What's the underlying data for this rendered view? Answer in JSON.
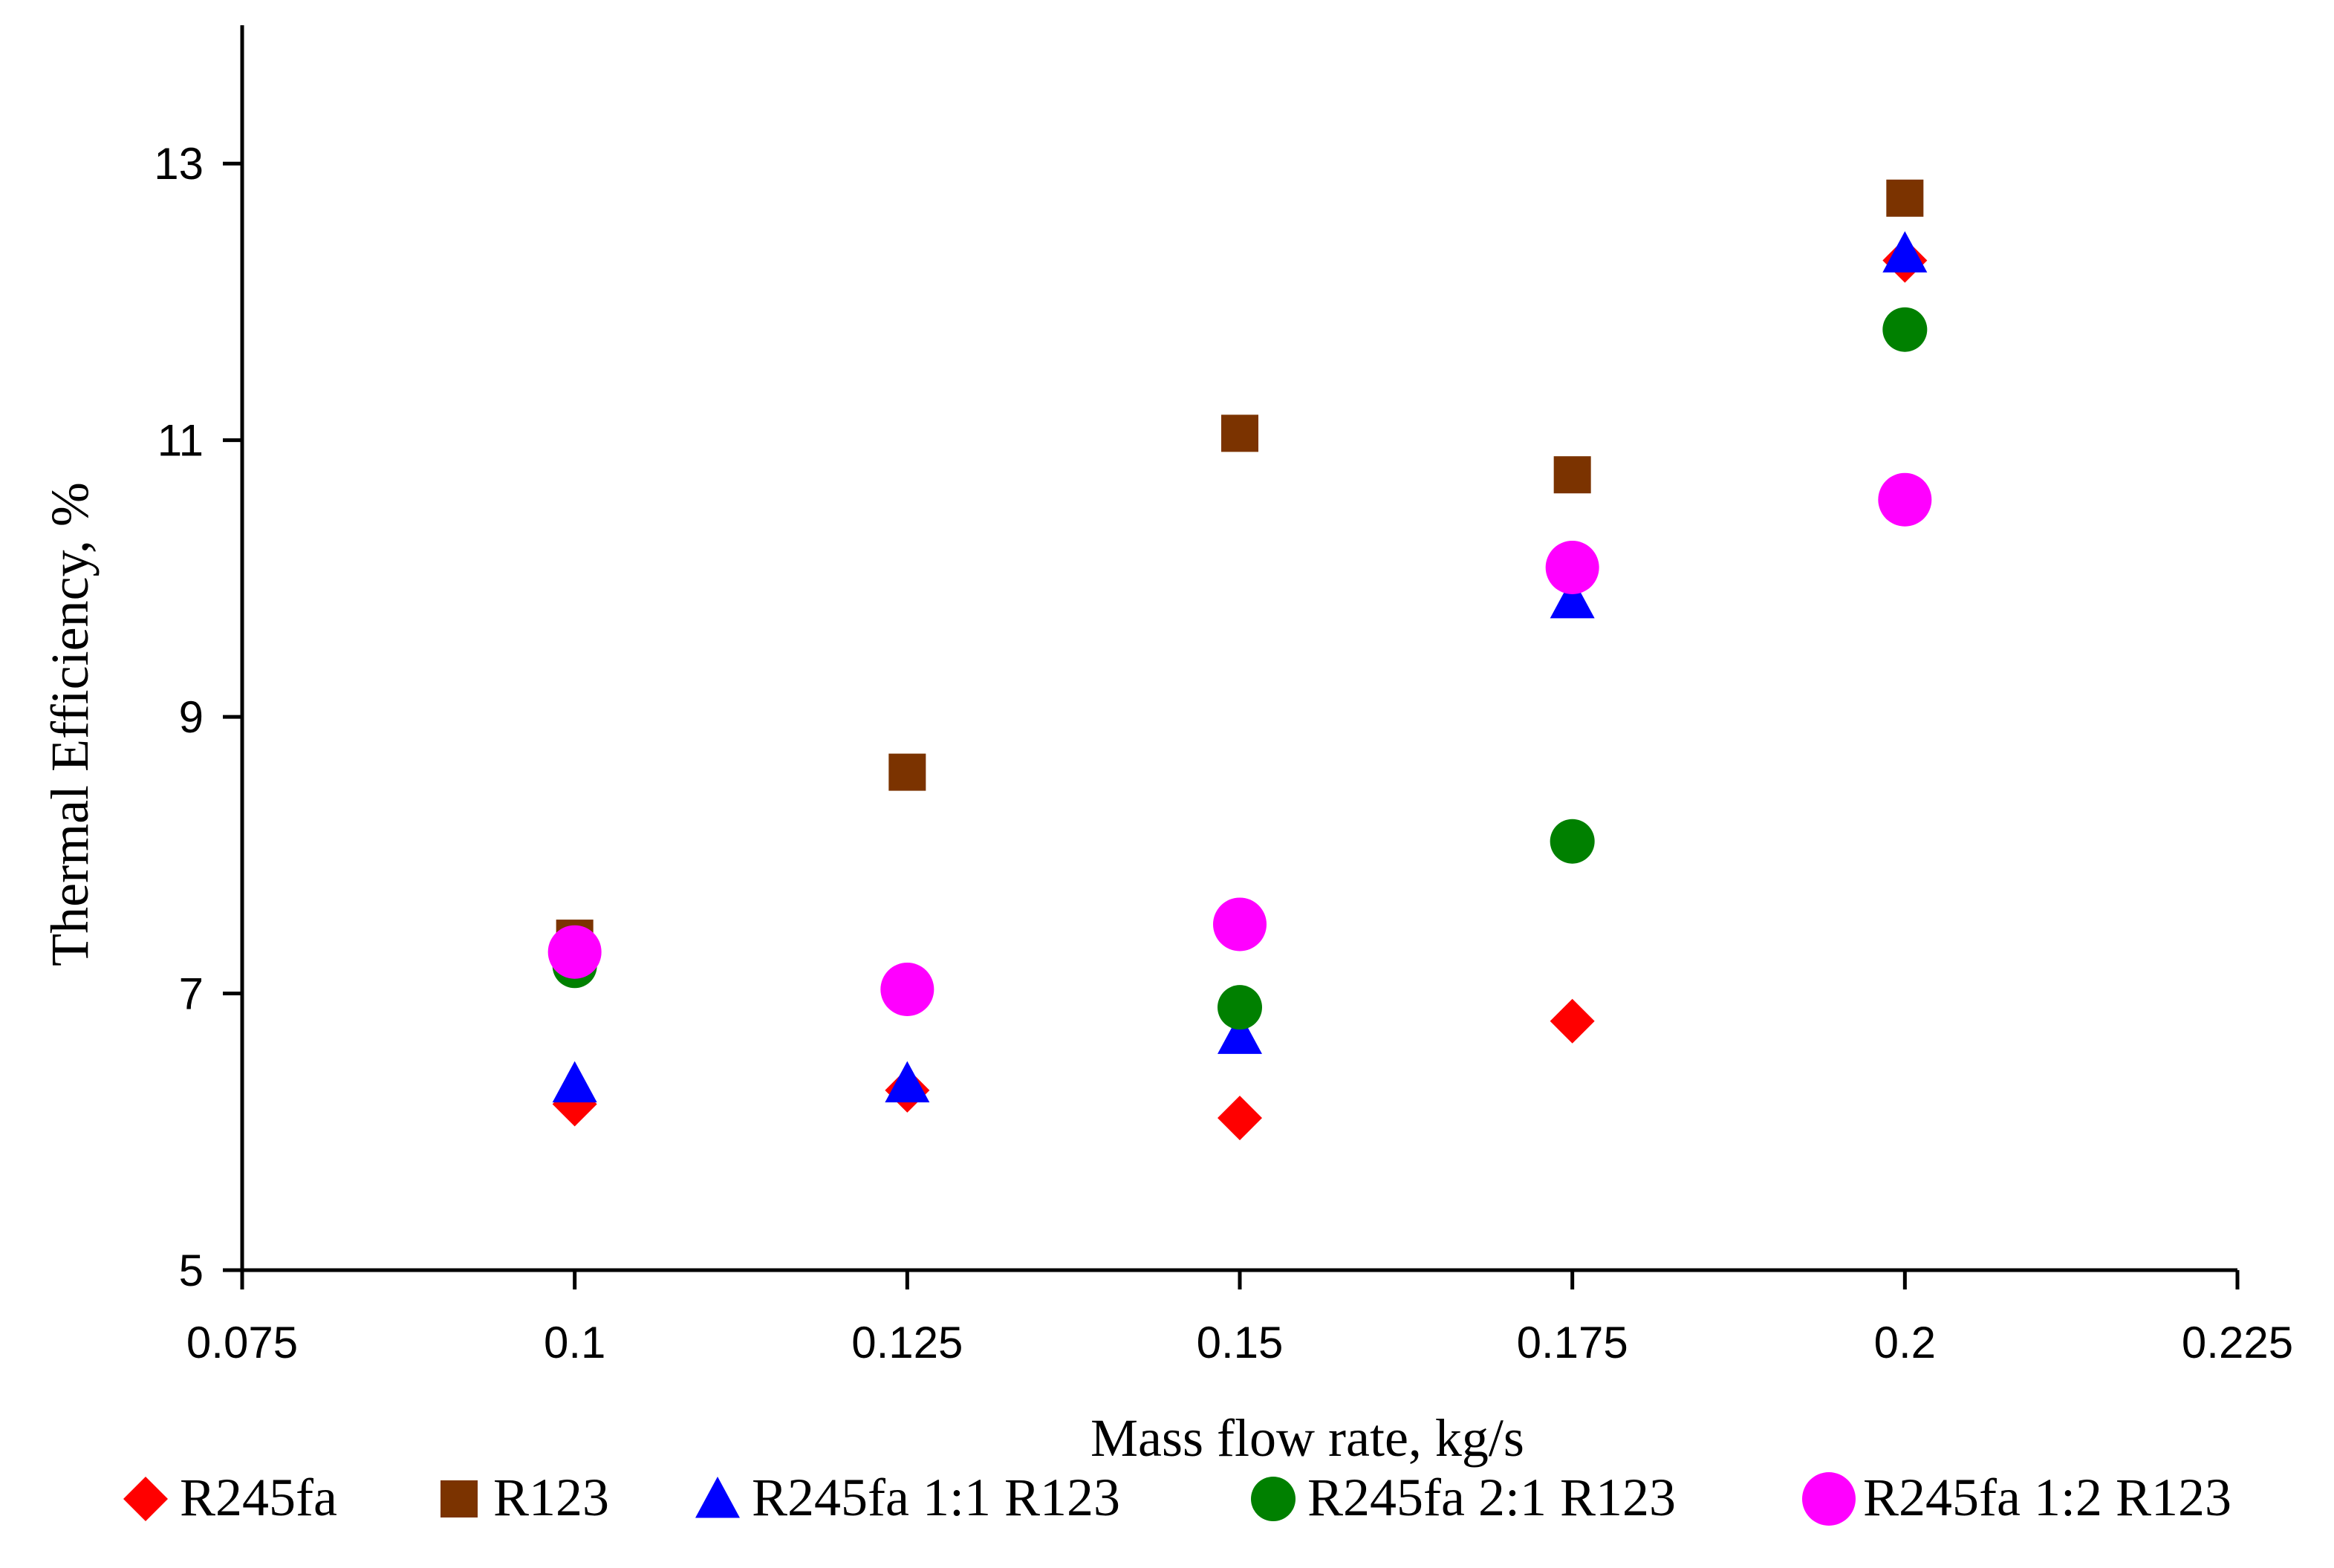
{
  "chart_data": {
    "type": "scatter",
    "xlabel": "Mass flow rate, kg/s",
    "ylabel": "Thermal Efficiency, %",
    "xlim": [
      0.075,
      0.225
    ],
    "ylim": [
      5,
      14
    ],
    "x_ticks": [
      0.075,
      0.1,
      0.125,
      0.15,
      0.175,
      0.2,
      0.225
    ],
    "x_tick_labels": [
      "0.075",
      "0.1",
      "0.125",
      "0.15",
      "0.175",
      "0.2",
      "0.225"
    ],
    "y_ticks": [
      5,
      7,
      9,
      11,
      13
    ],
    "y_tick_labels": [
      "5",
      "7",
      "9",
      "11",
      "13"
    ],
    "grid": false,
    "legend_position": "bottom",
    "series": [
      {
        "name": "R245fa",
        "marker": "diamond",
        "color": "#ff0000",
        "x": [
          0.1,
          0.125,
          0.15,
          0.175,
          0.2
        ],
        "y": [
          6.2,
          6.3,
          6.1,
          6.8,
          12.3
        ]
      },
      {
        "name": "R123",
        "marker": "square",
        "color": "#7b3300",
        "x": [
          0.1,
          0.125,
          0.15,
          0.175,
          0.2
        ],
        "y": [
          7.4,
          8.6,
          11.05,
          10.75,
          12.75
        ]
      },
      {
        "name": "R245fa 1:1 R123",
        "marker": "triangle",
        "color": "#0000ff",
        "x": [
          0.1,
          0.125,
          0.15,
          0.175,
          0.2
        ],
        "y": [
          6.35,
          6.35,
          6.7,
          9.85,
          12.35
        ]
      },
      {
        "name": "R245fa 2:1 R123",
        "marker": "circle",
        "color": "#008000",
        "x": [
          0.1,
          0.125,
          0.15,
          0.175,
          0.2
        ],
        "y": [
          7.2,
          7.0,
          6.9,
          8.1,
          11.8
        ]
      },
      {
        "name": "R245fa 1:2 R123",
        "marker": "circle-large",
        "color": "#ff00ff",
        "x": [
          0.1,
          0.125,
          0.15,
          0.175,
          0.2
        ],
        "y": [
          7.3,
          7.03,
          7.5,
          10.08,
          10.57
        ]
      }
    ]
  }
}
